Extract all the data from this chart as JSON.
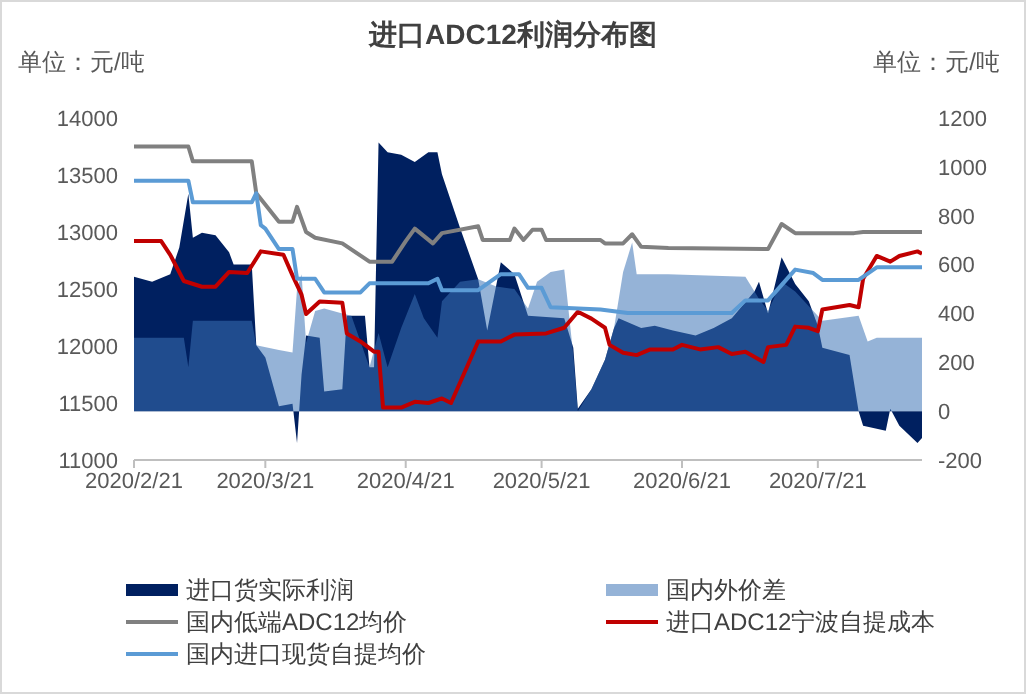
{
  "chart_data": {
    "type": "line",
    "title": "进口ADC12利润分布图",
    "ylabel": "单位：元/吨",
    "y2label": "单位：元/吨",
    "xlim": [
      "2020-02-21",
      "2020-08-13"
    ],
    "xticks": [
      {
        "value": "2020-02-21",
        "label": "2020/2/21"
      },
      {
        "value": "2020-03-21",
        "label": "2020/3/21"
      },
      {
        "value": "2020-04-21",
        "label": "2020/4/21"
      },
      {
        "value": "2020-05-21",
        "label": "2020/5/21"
      },
      {
        "value": "2020-06-21",
        "label": "2020/6/21"
      },
      {
        "value": "2020-07-21",
        "label": "2020/7/21"
      }
    ],
    "ylim": [
      11000,
      14000
    ],
    "yticks": [
      11000,
      11500,
      12000,
      12500,
      13000,
      13500,
      14000
    ],
    "y2lim": [
      -200,
      1200
    ],
    "y2ticks": [
      -200,
      0,
      200,
      400,
      600,
      800,
      1000,
      1200
    ],
    "legend": "bottom",
    "series": [
      {
        "name": "进口货实际利润",
        "type": "area",
        "axis": "y2",
        "color": "#002060",
        "x": [
          "2020-02-21",
          "2020-02-25",
          "2020-02-29",
          "2020-03-02",
          "2020-03-04",
          "2020-03-05",
          "2020-03-07",
          "2020-03-10",
          "2020-03-13",
          "2020-03-14",
          "2020-03-18",
          "2020-03-19",
          "2020-03-21",
          "2020-03-24",
          "2020-03-27",
          "2020-03-28",
          "2020-03-29",
          "2020-03-30",
          "2020-04-02",
          "2020-04-03",
          "2020-04-07",
          "2020-04-08",
          "2020-04-12",
          "2020-04-13",
          "2020-04-14",
          "2020-04-15",
          "2020-04-17",
          "2020-04-20",
          "2020-04-23",
          "2020-04-26",
          "2020-04-28",
          "2020-04-29",
          "2020-05-03",
          "2020-05-07",
          "2020-05-09",
          "2020-05-12",
          "2020-05-15",
          "2020-05-18",
          "2020-05-26",
          "2020-05-28",
          "2020-05-29",
          "2020-06-01",
          "2020-06-04",
          "2020-06-06",
          "2020-06-07",
          "2020-06-12",
          "2020-06-15",
          "2020-06-19",
          "2020-06-24",
          "2020-06-28",
          "2020-07-02",
          "2020-07-07",
          "2020-07-08",
          "2020-07-10",
          "2020-07-13",
          "2020-07-16",
          "2020-07-19",
          "2020-07-21",
          "2020-07-22",
          "2020-07-28",
          "2020-07-30",
          "2020-07-31",
          "2020-08-05",
          "2020-08-06",
          "2020-08-08",
          "2020-08-12",
          "2020-08-13"
        ],
        "values": [
          550,
          530,
          560,
          670,
          890,
          710,
          730,
          720,
          650,
          600,
          600,
          270,
          220,
          20,
          30,
          -130,
          150,
          310,
          300,
          80,
          90,
          390,
          390,
          180,
          180,
          1100,
          1060,
          1050,
          1020,
          1060,
          1060,
          970,
          750,
          540,
          330,
          610,
          560,
          390,
          380,
          260,
          10,
          90,
          210,
          340,
          380,
          340,
          350,
          330,
          310,
          340,
          380,
          490,
          530,
          400,
          630,
          520,
          450,
          350,
          260,
          230,
          0,
          -60,
          -80,
          10,
          -60,
          -130,
          -110
        ]
      },
      {
        "name": "国内外价差",
        "type": "area",
        "axis": "y2",
        "color": "#3b73b5",
        "x": [
          "2020-02-21",
          "2020-03-01",
          "2020-03-03",
          "2020-03-04",
          "2020-03-05",
          "2020-03-18",
          "2020-03-19",
          "2020-03-24",
          "2020-03-27",
          "2020-03-28",
          "2020-03-29",
          "2020-03-30",
          "2020-04-01",
          "2020-04-03",
          "2020-04-07",
          "2020-04-09",
          "2020-04-13",
          "2020-04-15",
          "2020-04-17",
          "2020-04-20",
          "2020-04-23",
          "2020-04-25",
          "2020-04-28",
          "2020-04-29",
          "2020-05-03",
          "2020-05-07",
          "2020-05-11",
          "2020-05-15",
          "2020-05-18",
          "2020-05-20",
          "2020-05-23",
          "2020-05-26",
          "2020-05-28",
          "2020-05-29",
          "2020-06-01",
          "2020-06-04",
          "2020-06-06",
          "2020-06-08",
          "2020-06-10",
          "2020-06-11",
          "2020-06-18",
          "2020-07-05",
          "2020-07-08",
          "2020-07-10",
          "2020-07-13",
          "2020-07-16",
          "2020-07-22",
          "2020-07-30",
          "2020-08-01",
          "2020-08-03",
          "2020-08-13"
        ],
        "values": [
          300,
          300,
          300,
          180,
          370,
          370,
          270,
          250,
          240,
          500,
          560,
          280,
          410,
          420,
          400,
          390,
          180,
          320,
          180,
          340,
          480,
          380,
          300,
          450,
          530,
          540,
          510,
          500,
          420,
          530,
          570,
          580,
          230,
          0,
          90,
          210,
          340,
          570,
          690,
          560,
          560,
          550,
          460,
          410,
          530,
          490,
          370,
          390,
          285,
          300,
          300
        ]
      },
      {
        "name": "国内低端ADC12均价",
        "color": "#808080",
        "x": [
          "2020-02-21",
          "2020-03-04",
          "2020-03-05",
          "2020-03-18",
          "2020-03-19",
          "2020-03-24",
          "2020-03-27",
          "2020-03-28",
          "2020-03-30",
          "2020-04-01",
          "2020-04-07",
          "2020-04-13",
          "2020-04-18",
          "2020-04-21",
          "2020-04-23",
          "2020-04-27",
          "2020-04-29",
          "2020-05-07",
          "2020-05-08",
          "2020-05-14",
          "2020-05-15",
          "2020-05-17",
          "2020-05-19",
          "2020-05-21",
          "2020-05-22",
          "2020-06-03",
          "2020-06-04",
          "2020-06-08",
          "2020-06-10",
          "2020-06-12",
          "2020-06-18",
          "2020-07-10",
          "2020-07-13",
          "2020-07-16",
          "2020-07-29",
          "2020-07-31",
          "2020-08-13"
        ],
        "values": [
          13750,
          13750,
          13620,
          13620,
          13340,
          13090,
          13090,
          13220,
          13000,
          12950,
          12900,
          12740,
          12740,
          12920,
          13030,
          12900,
          12990,
          13050,
          12930,
          12930,
          13030,
          12930,
          13020,
          13020,
          12930,
          12930,
          12900,
          12900,
          12980,
          12870,
          12860,
          12850,
          13070,
          12990,
          12990,
          13000,
          13000
        ]
      },
      {
        "name": "进口ADC12宁波自提成本",
        "color": "#c00000",
        "x": [
          "2020-02-21",
          "2020-02-27",
          "2020-02-29",
          "2020-03-03",
          "2020-03-07",
          "2020-03-10",
          "2020-03-13",
          "2020-03-17",
          "2020-03-20",
          "2020-03-25",
          "2020-03-27",
          "2020-03-29",
          "2020-03-30",
          "2020-04-02",
          "2020-04-07",
          "2020-04-08",
          "2020-04-11",
          "2020-04-14",
          "2020-04-15",
          "2020-04-16",
          "2020-04-20",
          "2020-04-23",
          "2020-04-26",
          "2020-04-29",
          "2020-05-01",
          "2020-05-07",
          "2020-05-12",
          "2020-05-15",
          "2020-05-22",
          "2020-05-26",
          "2020-05-29",
          "2020-06-01",
          "2020-06-04",
          "2020-06-05",
          "2020-06-08",
          "2020-06-11",
          "2020-06-14",
          "2020-06-19",
          "2020-06-21",
          "2020-06-25",
          "2020-06-29",
          "2020-07-02",
          "2020-07-05",
          "2020-07-09",
          "2020-07-10",
          "2020-07-14",
          "2020-07-16",
          "2020-07-19",
          "2020-07-21",
          "2020-07-22",
          "2020-07-28",
          "2020-07-30",
          "2020-07-31",
          "2020-08-03",
          "2020-08-06",
          "2020-08-08",
          "2020-08-12",
          "2020-08-13"
        ],
        "values": [
          12920,
          12920,
          12800,
          12570,
          12520,
          12520,
          12650,
          12640,
          12830,
          12800,
          12620,
          12450,
          12280,
          12390,
          12380,
          12110,
          12040,
          11950,
          11950,
          11460,
          11460,
          11510,
          11500,
          11540,
          11500,
          12040,
          12040,
          12100,
          12110,
          12160,
          12300,
          12240,
          12160,
          12010,
          11940,
          11920,
          11970,
          11970,
          12010,
          11970,
          11990,
          11930,
          11950,
          11860,
          11990,
          12010,
          12170,
          12160,
          12130,
          12320,
          12360,
          12340,
          12590,
          12790,
          12740,
          12790,
          12830,
          12810
        ]
      },
      {
        "name": "国内进口现货自提均价",
        "color": "#5b9bd5",
        "x": [
          "2020-02-21",
          "2020-03-04",
          "2020-03-05",
          "2020-03-18",
          "2020-03-19",
          "2020-03-20",
          "2020-03-21",
          "2020-03-24",
          "2020-03-27",
          "2020-03-28",
          "2020-04-01",
          "2020-04-03",
          "2020-04-11",
          "2020-04-13",
          "2020-04-26",
          "2020-04-28",
          "2020-04-29",
          "2020-05-07",
          "2020-05-12",
          "2020-05-16",
          "2020-05-18",
          "2020-05-21",
          "2020-05-23",
          "2020-06-03",
          "2020-06-09",
          "2020-07-02",
          "2020-07-05",
          "2020-07-10",
          "2020-07-16",
          "2020-07-20",
          "2020-07-22",
          "2020-07-30",
          "2020-08-03",
          "2020-08-13"
        ],
        "values": [
          13450,
          13450,
          13260,
          13260,
          13340,
          13060,
          13030,
          12850,
          12850,
          12590,
          12590,
          12470,
          12470,
          12550,
          12550,
          12590,
          12490,
          12490,
          12630,
          12630,
          12510,
          12510,
          12340,
          12320,
          12290,
          12290,
          12400,
          12400,
          12670,
          12640,
          12580,
          12580,
          12690,
          12690
        ]
      }
    ]
  }
}
